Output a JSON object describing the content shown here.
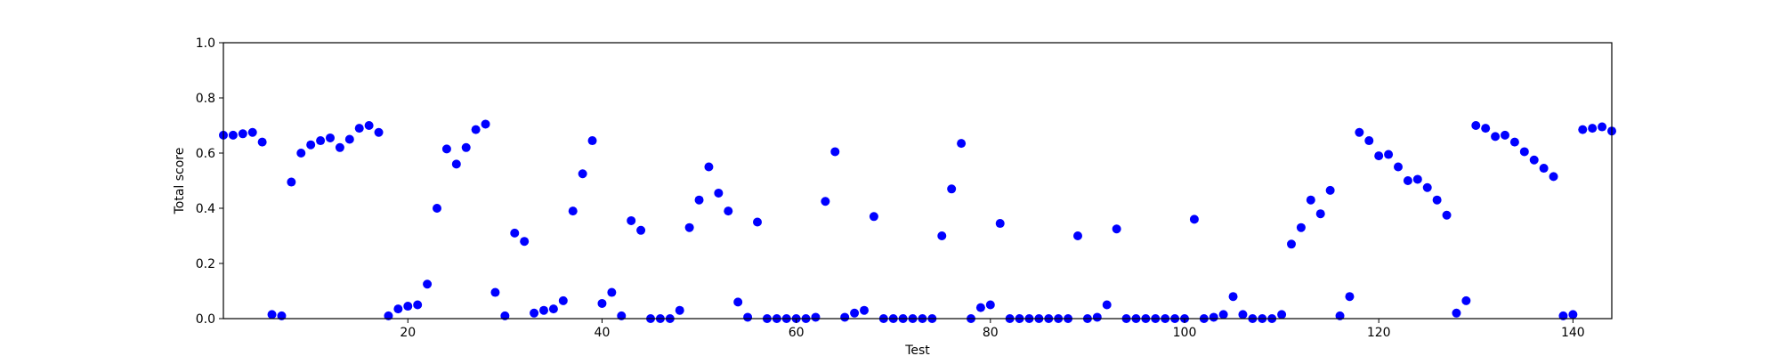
{
  "chart_data": {
    "type": "scatter",
    "title": "",
    "xlabel": "Test",
    "ylabel": "Total score",
    "xlim": [
      1,
      144
    ],
    "ylim": [
      0.0,
      1.0
    ],
    "grid": false,
    "marker_color": "#0000ff",
    "x_ticks": [
      {
        "value": 20,
        "label": "20"
      },
      {
        "value": 40,
        "label": "40"
      },
      {
        "value": 60,
        "label": "60"
      },
      {
        "value": 80,
        "label": "80"
      },
      {
        "value": 100,
        "label": "100"
      },
      {
        "value": 120,
        "label": "120"
      },
      {
        "value": 140,
        "label": "140"
      }
    ],
    "y_ticks": [
      {
        "value": 0.0,
        "label": "0.0"
      },
      {
        "value": 0.2,
        "label": "0.2"
      },
      {
        "value": 0.4,
        "label": "0.4"
      },
      {
        "value": 0.6,
        "label": "0.6"
      },
      {
        "value": 0.8,
        "label": "0.8"
      },
      {
        "value": 1.0,
        "label": "1.0"
      }
    ],
    "x": [
      1,
      2,
      3,
      4,
      5,
      6,
      7,
      8,
      9,
      10,
      11,
      12,
      13,
      14,
      15,
      16,
      17,
      18,
      19,
      20,
      21,
      22,
      23,
      24,
      25,
      26,
      27,
      28,
      29,
      30,
      31,
      32,
      33,
      34,
      35,
      36,
      37,
      38,
      39,
      40,
      41,
      42,
      43,
      44,
      45,
      46,
      47,
      48,
      49,
      50,
      51,
      52,
      53,
      54,
      55,
      56,
      57,
      58,
      59,
      60,
      61,
      62,
      63,
      64,
      65,
      66,
      67,
      68,
      69,
      70,
      71,
      72,
      73,
      74,
      75,
      76,
      77,
      78,
      79,
      80,
      81,
      82,
      83,
      84,
      85,
      86,
      87,
      88,
      89,
      90,
      91,
      92,
      93,
      94,
      95,
      96,
      97,
      98,
      99,
      100,
      101,
      102,
      103,
      104,
      105,
      106,
      107,
      108,
      109,
      110,
      111,
      112,
      113,
      114,
      115,
      116,
      117,
      118,
      119,
      120,
      121,
      122,
      123,
      124,
      125,
      126,
      127,
      128,
      129,
      130,
      131,
      132,
      133,
      134,
      135,
      136,
      137,
      138,
      139,
      140,
      141,
      142,
      143,
      144
    ],
    "y": [
      0.665,
      0.665,
      0.67,
      0.675,
      0.64,
      0.015,
      0.01,
      0.495,
      0.6,
      0.63,
      0.645,
      0.655,
      0.62,
      0.65,
      0.69,
      0.7,
      0.675,
      0.01,
      0.035,
      0.045,
      0.05,
      0.125,
      0.4,
      0.615,
      0.56,
      0.62,
      0.685,
      0.705,
      0.095,
      0.01,
      0.31,
      0.28,
      0.02,
      0.03,
      0.035,
      0.065,
      0.39,
      0.525,
      0.645,
      0.055,
      0.095,
      0.01,
      0.355,
      0.32,
      0.0,
      0.0,
      0.0,
      0.03,
      0.33,
      0.43,
      0.55,
      0.455,
      0.39,
      0.06,
      0.005,
      0.35,
      0.0,
      0.0,
      0.0,
      0.0,
      0.0,
      0.005,
      0.425,
      0.605,
      0.005,
      0.02,
      0.03,
      0.37,
      0.0,
      0.0,
      0.0,
      0.0,
      0.0,
      0.0,
      0.3,
      0.47,
      0.635,
      0.0,
      0.04,
      0.05,
      0.345,
      0.0,
      0.0,
      0.0,
      0.0,
      0.0,
      0.0,
      0.0,
      0.3,
      0.0,
      0.005,
      0.05,
      0.325,
      0.0,
      0.0,
      0.0,
      0.0,
      0.0,
      0.0,
      0.0,
      0.36,
      0.0,
      0.005,
      0.015,
      0.08,
      0.015,
      0.0,
      0.0,
      0.0,
      0.015,
      0.27,
      0.33,
      0.43,
      0.38,
      0.465,
      0.01,
      0.08,
      0.675,
      0.645,
      0.59,
      0.595,
      0.55,
      0.5,
      0.505,
      0.475,
      0.43,
      0.375,
      0.02,
      0.065,
      0.7,
      0.69,
      0.66,
      0.665,
      0.64,
      0.605,
      0.575,
      0.545,
      0.515,
      0.01,
      0.015,
      0.685,
      0.69,
      0.695,
      0.68
    ]
  }
}
